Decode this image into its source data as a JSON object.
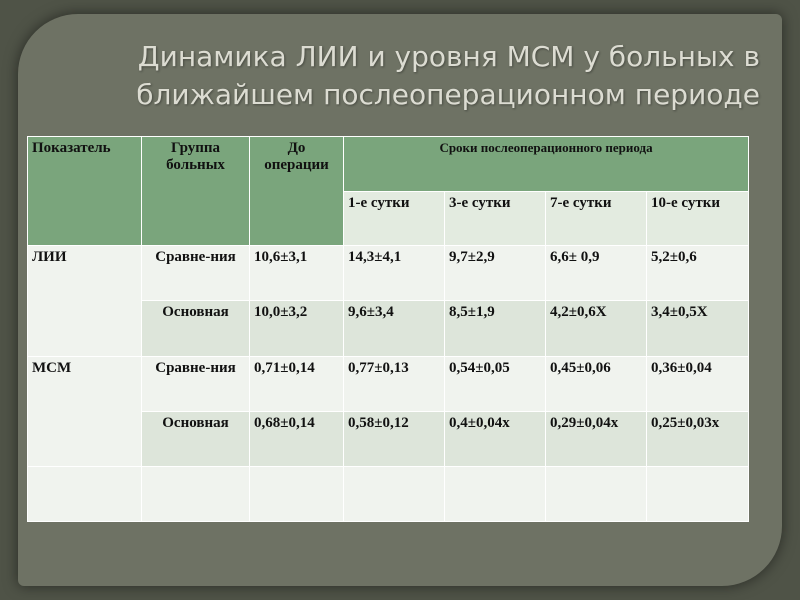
{
  "slide": {
    "title_line1": "Динамика ЛИИ и уровня МСМ у больных в",
    "title_line2": "ближайшем послеоперационном периоде"
  },
  "table": {
    "headers": {
      "indicator": "Показатель",
      "group": "Группа больных",
      "before": "До операции",
      "period": "Сроки послеоперационного периода",
      "days": [
        "1-е сутки",
        "3-е сутки",
        "7-е сутки",
        "10-е сутки"
      ]
    },
    "rows": [
      {
        "indicator": "ЛИИ",
        "group": "Сравне-ния",
        "before": "10,6±3,1",
        "d1": "14,3±4,1",
        "d3": "9,7±2,9",
        "d7": "6,6± 0,9",
        "d10": "5,2±0,6"
      },
      {
        "indicator": "",
        "group": "Основная",
        "before": "10,0±3,2",
        "d1": "9,6±3,4",
        "d3": "8,5±1,9",
        "d7": "4,2±0,6Х",
        "d10": "3,4±0,5Х"
      },
      {
        "indicator": "МСМ",
        "group": "Сравне-ния",
        "before": "0,71±0,14",
        "d1": "0,77±0,13",
        "d3": "0,54±0,05",
        "d7": "0,45±0,06",
        "d10": "0,36±0,04"
      },
      {
        "indicator": "",
        "group": "Основная",
        "before": "0,68±0,14",
        "d1": "0,58±0,12",
        "d3": "0,4±0,04х",
        "d7": "0,29±0,04х",
        "d10": "0,25±0,03х"
      }
    ]
  }
}
